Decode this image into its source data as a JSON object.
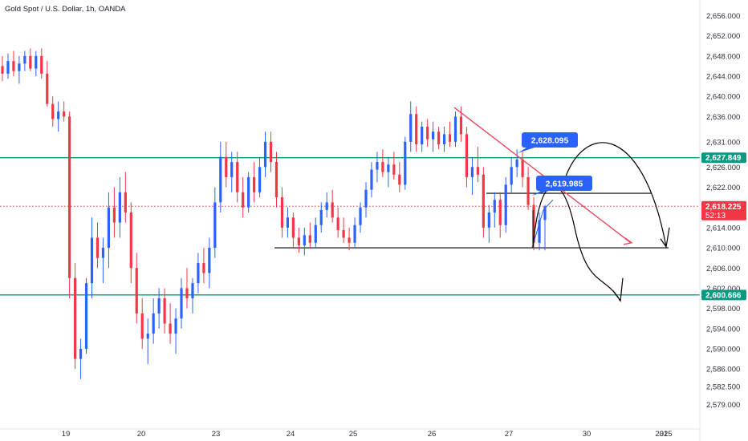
{
  "chart_data": {
    "type": "candlestick",
    "title": "Gold Spot / U.S. Dollar, 1h, OANDA",
    "ylim": [
      2576.5,
      2657.5
    ],
    "y_ticks": [
      "2,656.000",
      "2,652.000",
      "2,648.000",
      "2,644.000",
      "2,640.000",
      "2,636.000",
      "2,631.000",
      "2,626.000",
      "2,622.000",
      "2,618.000",
      "2,614.000",
      "2,610.000",
      "2,606.000",
      "2,602.000",
      "2,598.000",
      "2,594.000",
      "2,590.000",
      "2,586.000",
      "2,582.500",
      "2,579.000"
    ],
    "x_ticks": [
      "19",
      "20",
      "23",
      "24",
      "25",
      "26",
      "27",
      "30",
      "31",
      "2025"
    ],
    "price_badges": [
      {
        "label": "2,627.849",
        "value": 2627.849,
        "color": "#089981"
      },
      {
        "label": "2,618.225",
        "sub": "52:13",
        "value": 2618.225,
        "color": "#f23645"
      },
      {
        "label": "2,600.666",
        "value": 2600.666,
        "color": "#089981"
      }
    ],
    "callouts": [
      {
        "label": "2,628.095",
        "value": 2628.095
      },
      {
        "label": "2,619.985",
        "value": 2619.985
      }
    ],
    "horizontal_levels": [
      {
        "value": 2627.849,
        "color": "#089981",
        "style": "solid"
      },
      {
        "value": 2600.666,
        "color": "#089981",
        "style": "solid"
      },
      {
        "value": 2618.225,
        "color": "#f23645",
        "style": "dotted"
      },
      {
        "value": 2610.0,
        "color": "#000000",
        "style": "solid"
      },
      {
        "value": 2620.8,
        "color": "#000000",
        "style": "solid"
      }
    ],
    "candles": [
      {
        "o": 2646.0,
        "h": 2648.0,
        "l": 2643.0,
        "c": 2644.5
      },
      {
        "o": 2644.5,
        "h": 2648.5,
        "l": 2643.5,
        "c": 2647.0
      },
      {
        "o": 2647.0,
        "h": 2649.0,
        "l": 2644.0,
        "c": 2645.0
      },
      {
        "o": 2645.0,
        "h": 2648.0,
        "l": 2642.5,
        "c": 2646.5
      },
      {
        "o": 2646.5,
        "h": 2649.0,
        "l": 2645.0,
        "c": 2648.0
      },
      {
        "o": 2648.0,
        "h": 2649.5,
        "l": 2645.0,
        "c": 2645.5
      },
      {
        "o": 2645.5,
        "h": 2649.0,
        "l": 2644.0,
        "c": 2648.0
      },
      {
        "o": 2648.0,
        "h": 2649.5,
        "l": 2643.5,
        "c": 2644.5
      },
      {
        "o": 2644.5,
        "h": 2647.0,
        "l": 2638.0,
        "c": 2638.5
      },
      {
        "o": 2638.5,
        "h": 2640.0,
        "l": 2634.0,
        "c": 2635.5
      },
      {
        "o": 2635.5,
        "h": 2639.0,
        "l": 2633.0,
        "c": 2637.0
      },
      {
        "o": 2637.0,
        "h": 2639.0,
        "l": 2635.0,
        "c": 2636.0
      },
      {
        "o": 2636.0,
        "h": 2637.0,
        "l": 2600.0,
        "c": 2604.0
      },
      {
        "o": 2604.0,
        "h": 2607.0,
        "l": 2586.0,
        "c": 2588.0
      },
      {
        "o": 2588.0,
        "h": 2592.0,
        "l": 2584.0,
        "c": 2590.0
      },
      {
        "o": 2590.0,
        "h": 2604.0,
        "l": 2589.0,
        "c": 2603.0
      },
      {
        "o": 2603.0,
        "h": 2616.0,
        "l": 2600.0,
        "c": 2612.0
      },
      {
        "o": 2612.0,
        "h": 2615.0,
        "l": 2606.0,
        "c": 2608.0
      },
      {
        "o": 2608.0,
        "h": 2612.0,
        "l": 2603.0,
        "c": 2610.0
      },
      {
        "o": 2610.0,
        "h": 2621.0,
        "l": 2606.0,
        "c": 2618.0
      },
      {
        "o": 2618.0,
        "h": 2622.0,
        "l": 2612.0,
        "c": 2615.0
      },
      {
        "o": 2615.0,
        "h": 2624.0,
        "l": 2612.0,
        "c": 2621.0
      },
      {
        "o": 2621.0,
        "h": 2625.0,
        "l": 2615.0,
        "c": 2617.0
      },
      {
        "o": 2617.0,
        "h": 2619.0,
        "l": 2603.0,
        "c": 2606.0
      },
      {
        "o": 2606.0,
        "h": 2609.0,
        "l": 2595.0,
        "c": 2597.0
      },
      {
        "o": 2597.0,
        "h": 2600.0,
        "l": 2590.0,
        "c": 2592.0
      },
      {
        "o": 2592.0,
        "h": 2596.0,
        "l": 2587.0,
        "c": 2593.0
      },
      {
        "o": 2593.0,
        "h": 2600.0,
        "l": 2591.0,
        "c": 2597.0
      },
      {
        "o": 2597.0,
        "h": 2602.0,
        "l": 2594.0,
        "c": 2600.0
      },
      {
        "o": 2600.0,
        "h": 2602.0,
        "l": 2593.0,
        "c": 2595.0
      },
      {
        "o": 2595.0,
        "h": 2599.0,
        "l": 2591.0,
        "c": 2593.0
      },
      {
        "o": 2593.0,
        "h": 2598.0,
        "l": 2589.0,
        "c": 2596.0
      },
      {
        "o": 2596.0,
        "h": 2604.0,
        "l": 2594.0,
        "c": 2602.0
      },
      {
        "o": 2602.0,
        "h": 2606.0,
        "l": 2598.0,
        "c": 2600.0
      },
      {
        "o": 2600.0,
        "h": 2604.0,
        "l": 2597.0,
        "c": 2603.0
      },
      {
        "o": 2603.0,
        "h": 2609.0,
        "l": 2601.0,
        "c": 2607.0
      },
      {
        "o": 2607.0,
        "h": 2610.0,
        "l": 2603.0,
        "c": 2605.0
      },
      {
        "o": 2605.0,
        "h": 2612.0,
        "l": 2602.0,
        "c": 2610.0
      },
      {
        "o": 2610.0,
        "h": 2622.0,
        "l": 2608.0,
        "c": 2619.0
      },
      {
        "o": 2619.0,
        "h": 2631.0,
        "l": 2617.0,
        "c": 2628.0
      },
      {
        "o": 2628.0,
        "h": 2631.0,
        "l": 2622.0,
        "c": 2624.0
      },
      {
        "o": 2624.0,
        "h": 2629.0,
        "l": 2621.0,
        "c": 2627.0
      },
      {
        "o": 2627.0,
        "h": 2629.0,
        "l": 2619.0,
        "c": 2621.0
      },
      {
        "o": 2621.0,
        "h": 2624.0,
        "l": 2616.0,
        "c": 2618.0
      },
      {
        "o": 2618.0,
        "h": 2625.0,
        "l": 2617.0,
        "c": 2624.0
      },
      {
        "o": 2624.0,
        "h": 2627.0,
        "l": 2619.0,
        "c": 2621.0
      },
      {
        "o": 2621.0,
        "h": 2628.0,
        "l": 2620.0,
        "c": 2626.0
      },
      {
        "o": 2626.0,
        "h": 2633.0,
        "l": 2624.0,
        "c": 2631.0
      },
      {
        "o": 2631.0,
        "h": 2633.0,
        "l": 2625.0,
        "c": 2627.0
      },
      {
        "o": 2627.0,
        "h": 2629.0,
        "l": 2618.0,
        "c": 2620.0
      },
      {
        "o": 2620.0,
        "h": 2622.0,
        "l": 2612.0,
        "c": 2614.0
      },
      {
        "o": 2614.0,
        "h": 2618.0,
        "l": 2612.0,
        "c": 2616.0
      },
      {
        "o": 2616.0,
        "h": 2617.0,
        "l": 2610.0,
        "c": 2612.0
      },
      {
        "o": 2612.0,
        "h": 2614.0,
        "l": 2609.0,
        "c": 2610.5
      },
      {
        "o": 2610.5,
        "h": 2614.0,
        "l": 2608.5,
        "c": 2612.5
      },
      {
        "o": 2612.5,
        "h": 2615.0,
        "l": 2610.0,
        "c": 2611.0
      },
      {
        "o": 2611.0,
        "h": 2616.0,
        "l": 2610.0,
        "c": 2614.5
      },
      {
        "o": 2614.5,
        "h": 2619.0,
        "l": 2613.0,
        "c": 2617.5
      },
      {
        "o": 2617.5,
        "h": 2621.0,
        "l": 2616.0,
        "c": 2619.0
      },
      {
        "o": 2619.0,
        "h": 2621.5,
        "l": 2615.0,
        "c": 2616.0
      },
      {
        "o": 2616.0,
        "h": 2618.0,
        "l": 2612.0,
        "c": 2613.5
      },
      {
        "o": 2613.5,
        "h": 2616.0,
        "l": 2611.0,
        "c": 2612.0
      },
      {
        "o": 2612.0,
        "h": 2614.0,
        "l": 2609.5,
        "c": 2611.0
      },
      {
        "o": 2611.0,
        "h": 2616.0,
        "l": 2610.0,
        "c": 2614.5
      },
      {
        "o": 2614.5,
        "h": 2619.0,
        "l": 2613.0,
        "c": 2618.0
      },
      {
        "o": 2618.0,
        "h": 2623.0,
        "l": 2616.0,
        "c": 2621.5
      },
      {
        "o": 2621.5,
        "h": 2627.0,
        "l": 2620.0,
        "c": 2625.5
      },
      {
        "o": 2625.5,
        "h": 2629.0,
        "l": 2623.0,
        "c": 2627.0
      },
      {
        "o": 2627.0,
        "h": 2629.5,
        "l": 2624.0,
        "c": 2625.0
      },
      {
        "o": 2625.0,
        "h": 2628.0,
        "l": 2622.0,
        "c": 2626.5
      },
      {
        "o": 2626.5,
        "h": 2629.0,
        "l": 2623.5,
        "c": 2624.5
      },
      {
        "o": 2624.5,
        "h": 2627.0,
        "l": 2621.0,
        "c": 2622.5
      },
      {
        "o": 2622.5,
        "h": 2632.0,
        "l": 2621.5,
        "c": 2631.0
      },
      {
        "o": 2631.0,
        "h": 2639.0,
        "l": 2629.0,
        "c": 2636.5
      },
      {
        "o": 2636.5,
        "h": 2638.0,
        "l": 2629.0,
        "c": 2630.5
      },
      {
        "o": 2630.5,
        "h": 2635.0,
        "l": 2629.0,
        "c": 2634.0
      },
      {
        "o": 2634.0,
        "h": 2635.5,
        "l": 2630.0,
        "c": 2631.5
      },
      {
        "o": 2631.5,
        "h": 2635.0,
        "l": 2629.0,
        "c": 2633.0
      },
      {
        "o": 2633.0,
        "h": 2634.0,
        "l": 2629.5,
        "c": 2630.5
      },
      {
        "o": 2630.5,
        "h": 2634.0,
        "l": 2629.0,
        "c": 2632.5
      },
      {
        "o": 2632.5,
        "h": 2635.0,
        "l": 2630.0,
        "c": 2631.0
      },
      {
        "o": 2631.0,
        "h": 2637.0,
        "l": 2630.0,
        "c": 2636.0
      },
      {
        "o": 2636.0,
        "h": 2638.0,
        "l": 2631.0,
        "c": 2632.5
      },
      {
        "o": 2632.5,
        "h": 2634.0,
        "l": 2622.0,
        "c": 2624.0
      },
      {
        "o": 2624.0,
        "h": 2628.0,
        "l": 2620.5,
        "c": 2626.0
      },
      {
        "o": 2626.0,
        "h": 2630.0,
        "l": 2623.0,
        "c": 2624.5
      },
      {
        "o": 2624.5,
        "h": 2626.0,
        "l": 2612.0,
        "c": 2614.0
      },
      {
        "o": 2614.0,
        "h": 2618.5,
        "l": 2611.0,
        "c": 2617.0
      },
      {
        "o": 2617.0,
        "h": 2621.0,
        "l": 2614.0,
        "c": 2619.5
      },
      {
        "o": 2619.5,
        "h": 2621.0,
        "l": 2612.0,
        "c": 2614.5
      },
      {
        "o": 2614.5,
        "h": 2624.0,
        "l": 2613.0,
        "c": 2622.5
      },
      {
        "o": 2622.5,
        "h": 2628.0,
        "l": 2621.0,
        "c": 2626.0
      },
      {
        "o": 2626.0,
        "h": 2629.5,
        "l": 2624.0,
        "c": 2627.5
      },
      {
        "o": 2627.5,
        "h": 2629.0,
        "l": 2622.0,
        "c": 2624.0
      },
      {
        "o": 2624.0,
        "h": 2626.0,
        "l": 2617.5,
        "c": 2618.5
      },
      {
        "o": 2618.5,
        "h": 2620.0,
        "l": 2609.5,
        "c": 2611.0
      },
      {
        "o": 2611.0,
        "h": 2617.0,
        "l": 2609.5,
        "c": 2615.5
      },
      {
        "o": 2615.5,
        "h": 2618.5,
        "l": 2609.5,
        "c": 2618.2
      }
    ],
    "drawings": {
      "red_trend_line": [
        [
          2637.8,
          2611.0
        ]
      ],
      "black_arcs": 2,
      "arrows": 3
    }
  }
}
